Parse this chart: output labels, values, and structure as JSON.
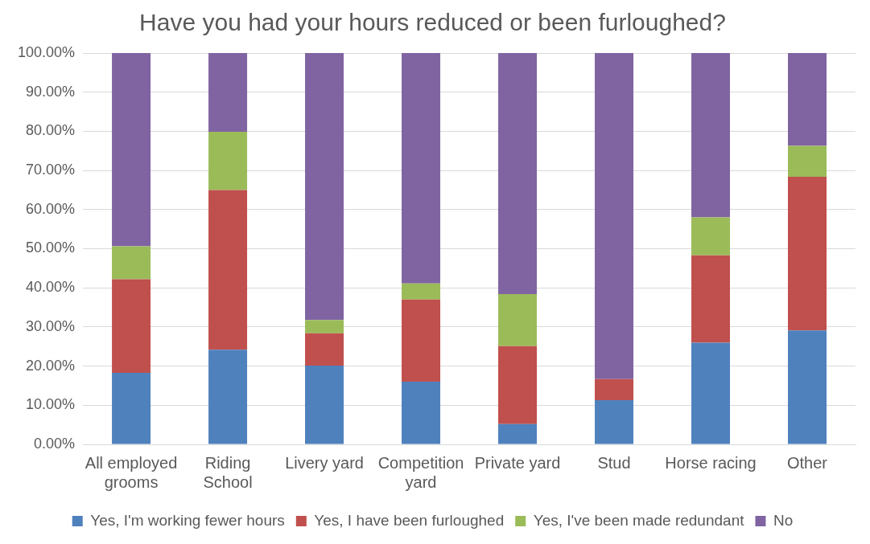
{
  "chart_data": {
    "type": "bar",
    "stacked": true,
    "title": "Have you had your hours reduced or been furloughed?",
    "categories": [
      "All employed grooms",
      "Riding School",
      "Livery yard",
      "Competition yard",
      "Private yard",
      "Stud",
      "Horse racing",
      "Other"
    ],
    "series": [
      {
        "name": "Yes, I'm working fewer hours",
        "color": "#4f81bd",
        "values": [
          18.3,
          24.2,
          20.1,
          16.0,
          5.2,
          11.3,
          26.0,
          29.1
        ]
      },
      {
        "name": "Yes, I have been furloughed",
        "color": "#c0504d",
        "values": [
          23.9,
          40.8,
          8.3,
          21.0,
          19.9,
          5.4,
          22.3,
          39.3
        ]
      },
      {
        "name": "Yes, I've been made redundant",
        "color": "#9bbb59",
        "values": [
          8.4,
          14.9,
          3.4,
          4.1,
          13.3,
          0,
          9.7,
          7.9
        ]
      },
      {
        "name": "No",
        "color": "#8064a2",
        "values": [
          49.4,
          20.1,
          68.2,
          58.9,
          61.6,
          83.3,
          42.0,
          23.7
        ]
      }
    ],
    "ylim": [
      0,
      100
    ],
    "yticks": [
      {
        "value": 0,
        "label": "0.00%"
      },
      {
        "value": 10,
        "label": "10.00%"
      },
      {
        "value": 20,
        "label": "20.00%"
      },
      {
        "value": 30,
        "label": "30.00%"
      },
      {
        "value": 40,
        "label": "40.00%"
      },
      {
        "value": 50,
        "label": "50.00%"
      },
      {
        "value": 60,
        "label": "60.00%"
      },
      {
        "value": 70,
        "label": "70.00%"
      },
      {
        "value": 80,
        "label": "80.00%"
      },
      {
        "value": 90,
        "label": "90.00%"
      },
      {
        "value": 100,
        "label": "100.00%"
      }
    ],
    "grid": "y",
    "legend": "bottom"
  }
}
